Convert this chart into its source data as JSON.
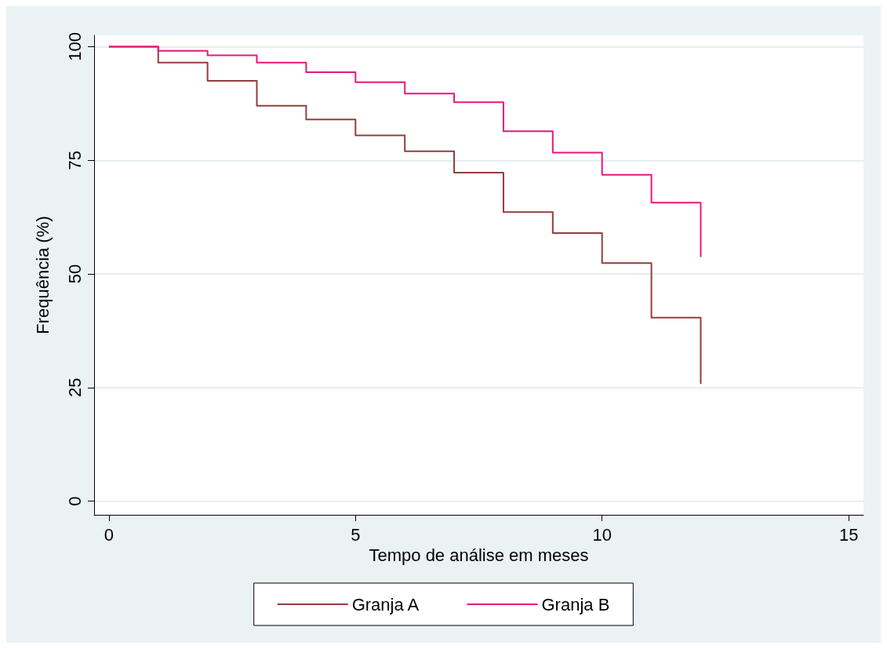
{
  "chart_data": {
    "type": "step",
    "xlabel": "Tempo de análise em meses",
    "ylabel": "Frequência (%)",
    "x": [
      0,
      1,
      2,
      3,
      4,
      5,
      6,
      7,
      8,
      9,
      10,
      11,
      12
    ],
    "series": [
      {
        "name": "Granja A",
        "color": "#943d3d",
        "values": [
          100,
          96.5,
          92.5,
          87,
          84,
          80.5,
          77,
          72.3,
          63.6,
          59,
          52.4,
          40.4,
          25.8
        ]
      },
      {
        "name": "Granja B",
        "color": "#e8177d",
        "values": [
          100,
          99.1,
          98.1,
          96.5,
          94.4,
          92.2,
          89.7,
          87.8,
          81.4,
          76.7,
          71.8,
          65.7,
          53.7
        ]
      }
    ],
    "xlim": [
      -0.3,
      15.3
    ],
    "xticks": [
      0,
      5,
      10,
      15
    ],
    "ylim": [
      -3,
      102.5
    ],
    "yticks": [
      0,
      25,
      50,
      75,
      100
    ],
    "grid": "y",
    "legend": "bottom",
    "line_style": "solid",
    "marker": "none"
  }
}
